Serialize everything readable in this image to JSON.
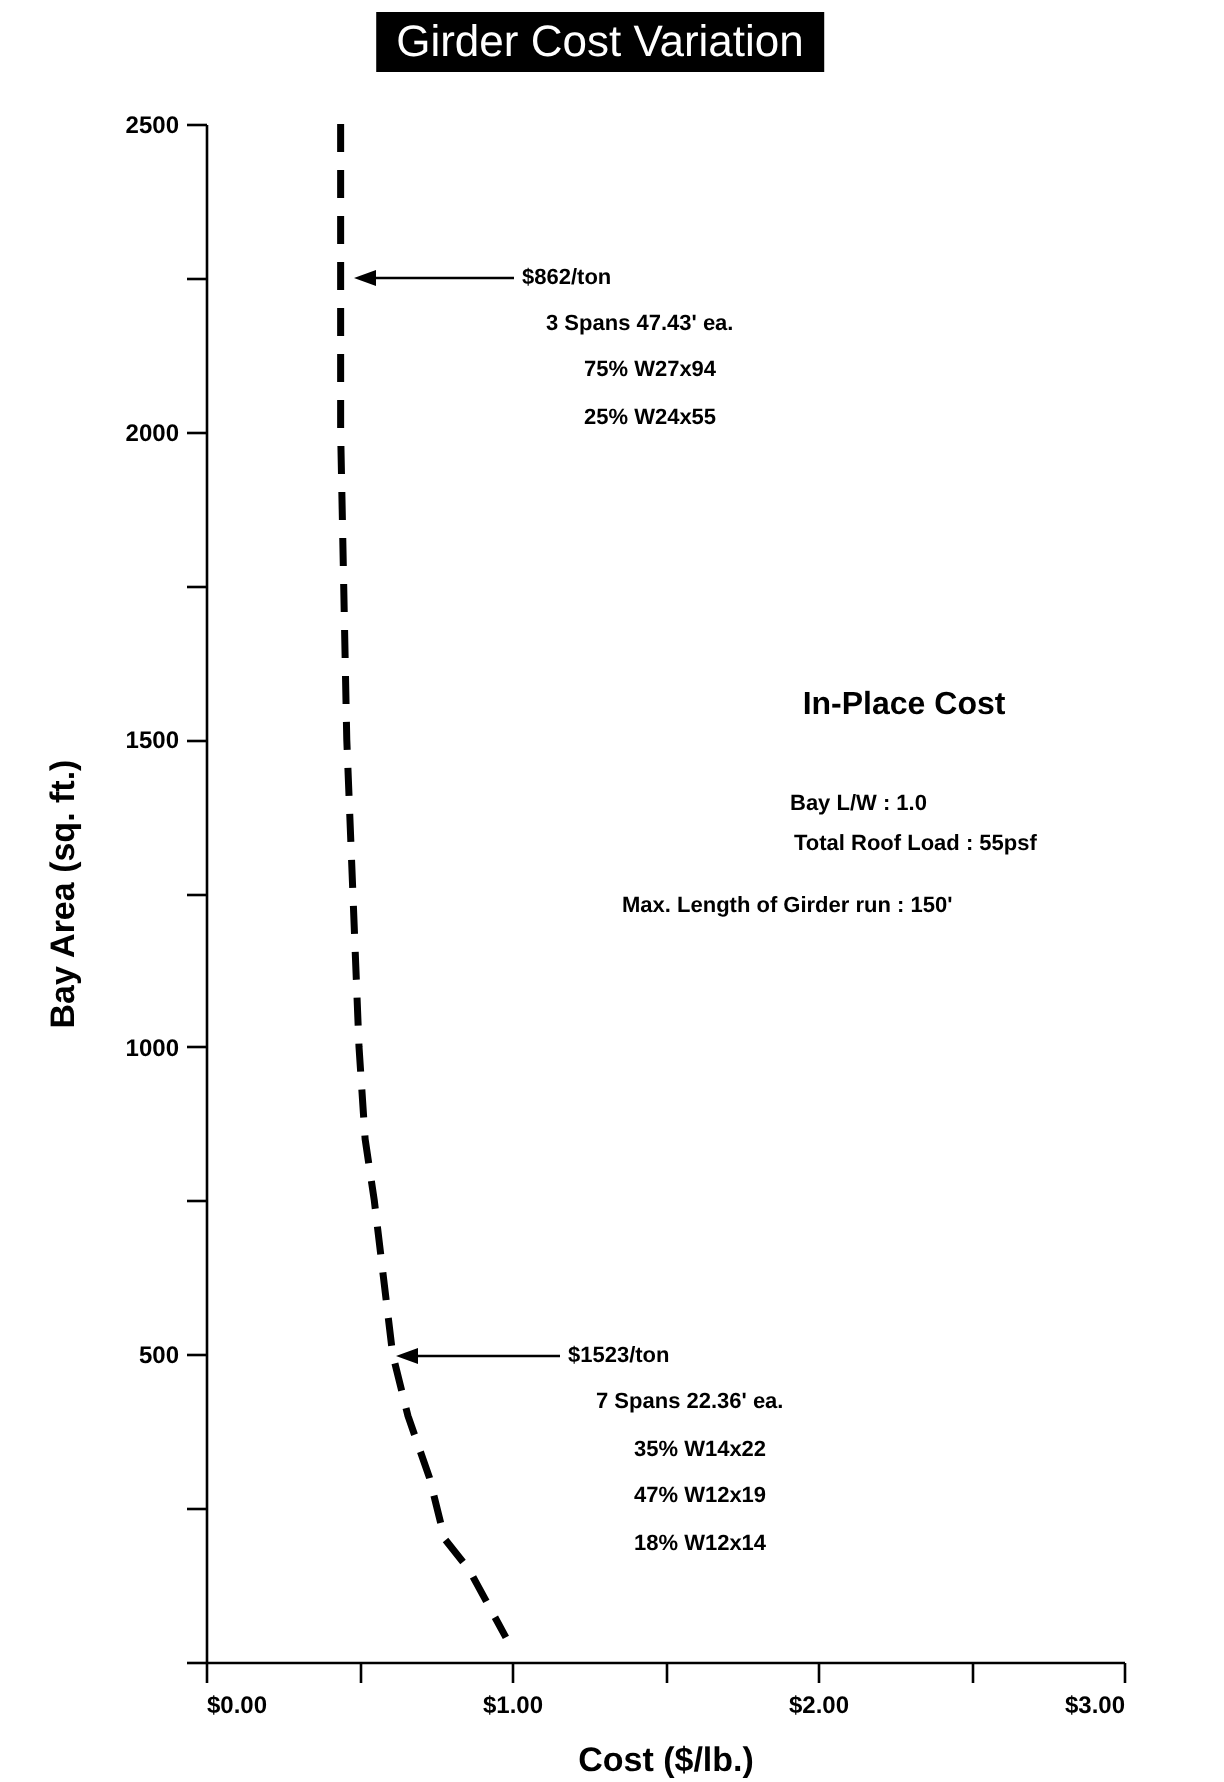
{
  "chart_data": {
    "type": "line",
    "title": "Girder Cost Variation",
    "xlabel": "Cost  ($/lb.)",
    "ylabel": "Bay Area  (sq. ft.)",
    "x": [
      0.44,
      0.44,
      0.44,
      0.45,
      0.46,
      0.48,
      0.5,
      0.52,
      0.55,
      0.61,
      0.66,
      0.73,
      0.78,
      0.86,
      0.98
    ],
    "series": [
      {
        "color": "#000000",
        "values": [
          2500,
          2250,
          2000,
          1750,
          1500,
          1250,
          1000,
          850,
          750,
          500,
          400,
          300,
          200,
          150,
          40
        ]
      }
    ],
    "xlim": [
      0,
      3
    ],
    "ylim": [
      0,
      2500
    ],
    "xticks": [
      {
        "value": 0,
        "label": "$0.00"
      },
      {
        "value": 0.5,
        "label": null
      },
      {
        "value": 1,
        "label": "$1.00"
      },
      {
        "value": 1.5,
        "label": null
      },
      {
        "value": 2,
        "label": "$2.00"
      },
      {
        "value": 2.5,
        "label": null
      },
      {
        "value": 3,
        "label": "$3.00"
      }
    ],
    "yticks": [
      {
        "value": 0,
        "label": null
      },
      {
        "value": 250,
        "label": null
      },
      500,
      {
        "value": 750,
        "label": null
      },
      1000,
      {
        "value": 1250,
        "label": null
      },
      1500,
      {
        "value": 1750,
        "label": null
      },
      2000,
      {
        "value": 2250,
        "label": null
      },
      2500
    ],
    "grid": false,
    "marker": "none",
    "line_style": "dashed",
    "annotations": [
      "$862/ton",
      "3 Spans  47.43' ea.",
      "75%  W27x94",
      "25%  W24x55",
      "In-Place Cost",
      "Bay L/W : 1.0",
      "Total Roof Load : 55psf",
      "Max. Length of Girder run : 150'",
      "$1523/ton",
      "7 Spans  22.36' ea.",
      "35%  W14x22",
      "47%  W12x19",
      "18%  W12x14"
    ]
  }
}
